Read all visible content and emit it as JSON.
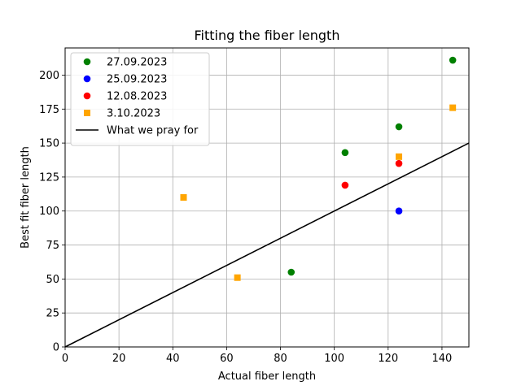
{
  "chart_data": {
    "type": "scatter",
    "title": "Fitting the fiber length",
    "xlabel": "Actual fiber length",
    "ylabel": "Best fit fiber length",
    "xlim": [
      0,
      150
    ],
    "ylim": [
      0,
      220
    ],
    "xticks": [
      0,
      20,
      40,
      60,
      80,
      100,
      120,
      140
    ],
    "yticks": [
      0,
      25,
      50,
      75,
      100,
      125,
      150,
      175,
      200
    ],
    "grid": true,
    "legend_position": "top-left",
    "series": [
      {
        "name": "27.09.2023",
        "marker": "circle",
        "color": "#008000",
        "points": [
          [
            84,
            55
          ],
          [
            104,
            143
          ],
          [
            124,
            162
          ],
          [
            144,
            211
          ]
        ]
      },
      {
        "name": "25.09.2023",
        "marker": "circle",
        "color": "#0000ff",
        "points": [
          [
            124,
            100
          ]
        ]
      },
      {
        "name": "12.08.2023",
        "marker": "circle",
        "color": "#ff0000",
        "points": [
          [
            104,
            119
          ],
          [
            124,
            135
          ]
        ]
      },
      {
        "name": "3.10.2023",
        "marker": "square",
        "color": "#ffa500",
        "points": [
          [
            44,
            110
          ],
          [
            64,
            51
          ],
          [
            124,
            140
          ],
          [
            144,
            176
          ]
        ]
      }
    ],
    "reference_line": {
      "name": "What we pray for",
      "color": "#000000",
      "points": [
        [
          0,
          0
        ],
        [
          150,
          150
        ]
      ]
    }
  }
}
